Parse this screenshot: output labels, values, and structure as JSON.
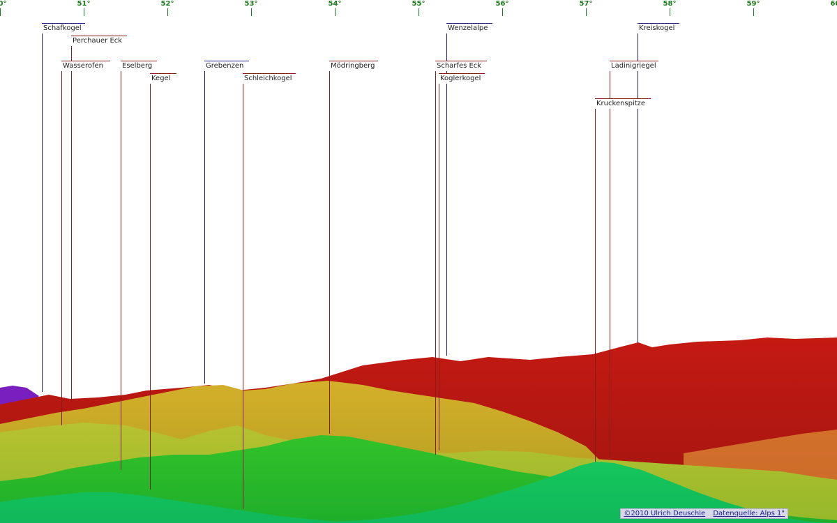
{
  "axis": {
    "ticks": [
      {
        "label": "50°",
        "deg": 50
      },
      {
        "label": "51°",
        "deg": 51
      },
      {
        "label": "52°",
        "deg": 52
      },
      {
        "label": "53°",
        "deg": 53
      },
      {
        "label": "54°",
        "deg": 54
      },
      {
        "label": "55°",
        "deg": 55
      },
      {
        "label": "56°",
        "deg": 56
      },
      {
        "label": "57°",
        "deg": 57
      },
      {
        "label": "58°",
        "deg": 58
      },
      {
        "label": "59°",
        "deg": 59
      },
      {
        "label": "60°",
        "deg": 60
      }
    ]
  },
  "peaks": [
    {
      "name": "Schafkogel",
      "deg": 50.5,
      "color": "#1a1a8a"
    },
    {
      "name": "Perchauer Eck",
      "deg": 50.85,
      "color": "#8a1a1a"
    },
    {
      "name": "Wasserofen",
      "deg": 50.73,
      "color": "#8a1a1a"
    },
    {
      "name": "Eselberg",
      "deg": 51.44,
      "color": "#8a1a1a"
    },
    {
      "name": "Kegel",
      "deg": 51.79,
      "color": "#8a1a1a"
    },
    {
      "name": "Grebenzen",
      "deg": 52.44,
      "color": "#1a1a8a"
    },
    {
      "name": "Schleichkogel",
      "deg": 52.9,
      "color": "#8a1a1a"
    },
    {
      "name": "Mödringberg",
      "deg": 53.93,
      "color": "#8a1a1a"
    },
    {
      "name": "Wenzelalpe",
      "deg": 55.33,
      "color": "#1a1a8a"
    },
    {
      "name": "Scharfes Eck",
      "deg": 55.2,
      "color": "#8a1a1a"
    },
    {
      "name": "Koglerkogel",
      "deg": 55.24,
      "color": "#8a1a1a"
    },
    {
      "name": "Kreiskogel",
      "deg": 57.62,
      "color": "#1a1a8a"
    },
    {
      "name": "Ladinigriegel",
      "deg": 57.28,
      "color": "#8a1a1a"
    },
    {
      "name": "Kruckenspitze",
      "deg": 57.11,
      "color": "#8a1a1a"
    }
  ],
  "footer": {
    "copyright": "©2010 Ulrich Deuschle",
    "source": "Datenquelle: Alps 1\""
  }
}
